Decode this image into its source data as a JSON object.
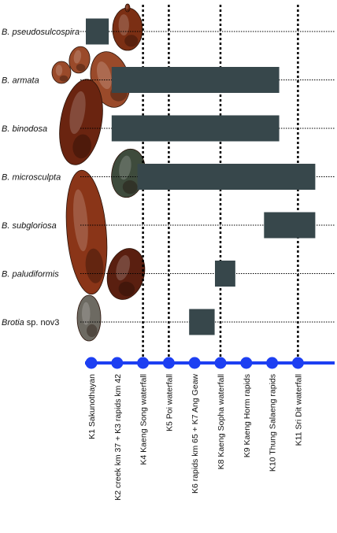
{
  "chart_data": {
    "type": "range_bar",
    "title": "",
    "xlabel": "",
    "ylabel": "",
    "sites": [
      "K1 Sakunothayan",
      "K2 creek km 37 + K3 rapids km 42",
      "K4 Kaeng Song waterfall",
      "K5 Poi waterfall",
      "K6 rapids km 65 + K7 Ang Geaw",
      "K8 Kaeng Sopha waterfall",
      "K9 Kaeng Horm rapids",
      "K10 Thung Salaeng rapids",
      "K11 Sri Dit waterfall"
    ],
    "waterfall_sites": [
      3,
      4,
      6,
      9
    ],
    "species": [
      {
        "genus": "B.",
        "epithet": "pseudosulcospira",
        "start": 1,
        "end": 1.4
      },
      {
        "genus": "B.",
        "epithet": "armata",
        "start": 2,
        "end": 8.0
      },
      {
        "genus": "B.",
        "epithet": "binodosa",
        "start": 2,
        "end": 8.0
      },
      {
        "genus": "B.",
        "epithet": "microsculpta",
        "start": 3,
        "end": 9.0
      },
      {
        "genus": "B.",
        "epithet": "subgloriosa",
        "start": 7.9,
        "end": 9.0
      },
      {
        "genus": "B.",
        "epithet": "paludiformis",
        "start": 6,
        "end": 6.3
      },
      {
        "genus": "Brotia",
        "epithet": "sp. nov3",
        "start": 5,
        "end": 5.5
      }
    ],
    "colors": {
      "bar": "#37474b",
      "axis": "#1d3ff2",
      "dot": "#1d3ff2",
      "guide": "#000000"
    },
    "shell_colors": [
      "#7b2f14",
      "#9a4a2a",
      "#6a2410",
      "#3e4b3c",
      "#8a3518",
      "#5a1f10",
      "#6d6a62"
    ]
  }
}
